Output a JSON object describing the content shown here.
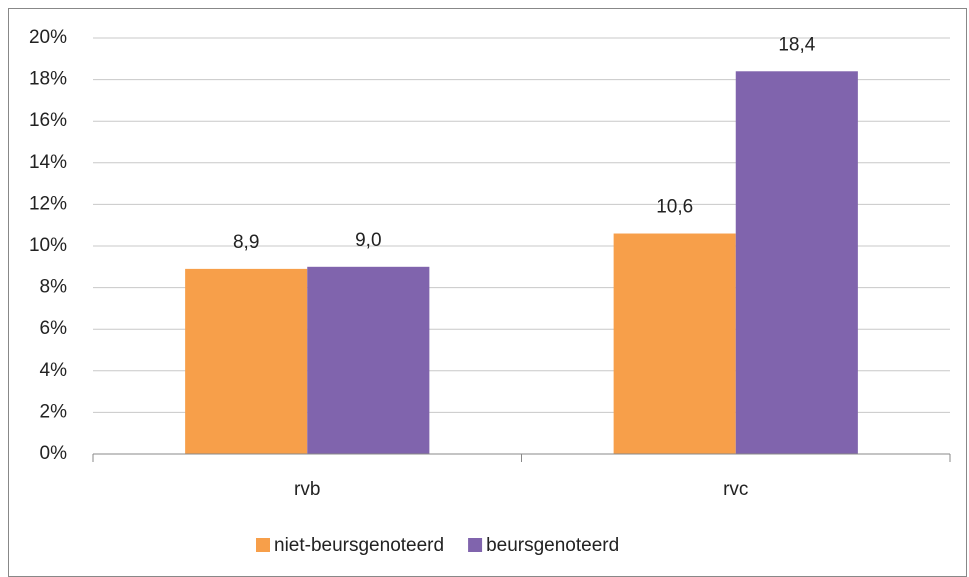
{
  "chart_data": {
    "type": "bar",
    "categories": [
      "rvb",
      "rvc"
    ],
    "series": [
      {
        "name": "niet-beursgenoteerd",
        "color": "#f79f4a",
        "values": [
          8.9,
          10.6
        ],
        "value_labels": [
          "8,9",
          "10,6"
        ]
      },
      {
        "name": "beursgenoteerd",
        "color": "#8064ad",
        "values": [
          9.0,
          18.4
        ],
        "value_labels": [
          "9,0",
          "18,4"
        ]
      }
    ],
    "ylim": [
      0,
      20
    ],
    "yticks": [
      {
        "value": 0,
        "label": "0%"
      },
      {
        "value": 2,
        "label": "2%"
      },
      {
        "value": 4,
        "label": "4%"
      },
      {
        "value": 6,
        "label": "6%"
      },
      {
        "value": 8,
        "label": "8%"
      },
      {
        "value": 10,
        "label": "10%"
      },
      {
        "value": 12,
        "label": "12%"
      },
      {
        "value": 14,
        "label": "14%"
      },
      {
        "value": 16,
        "label": "16%"
      },
      {
        "value": 18,
        "label": "18%"
      },
      {
        "value": 20,
        "label": "20%"
      }
    ],
    "grid": true,
    "legend": "bottom"
  }
}
